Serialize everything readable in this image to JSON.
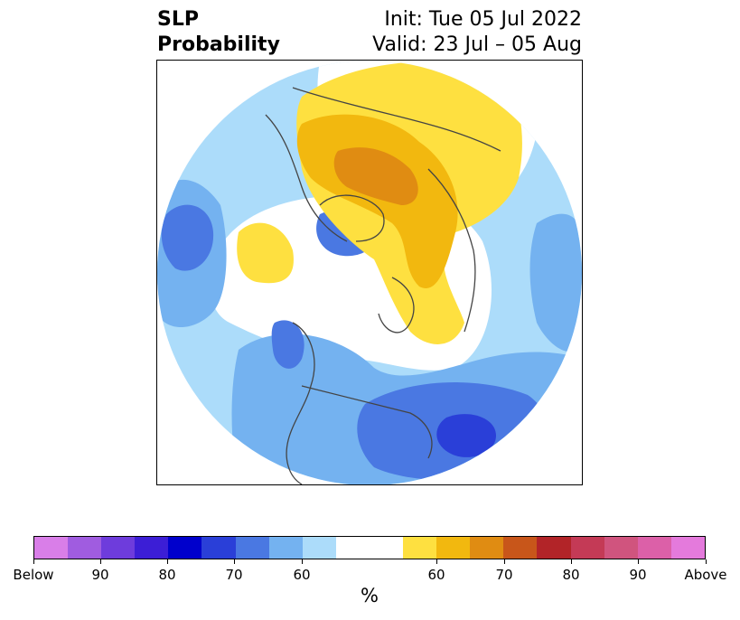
{
  "header": {
    "title_line1": "SLP",
    "title_line2": "Probability",
    "init_text": "Init: Tue 05 Jul 2022",
    "valid_text": "Valid: 23 Jul – 05 Aug"
  },
  "map": {
    "projection": "north-polar-stereographic",
    "palette": {
      "below_60": "#acdcfa",
      "below_70": "#74b2f0",
      "below_80": "#4a78e2",
      "below_90": "#2a3fd8",
      "near_normal": "#ffffff",
      "above_60": "#fee040",
      "above_70": "#f2b80f",
      "above_80": "#e08c12",
      "borders": "#444444"
    }
  },
  "colorbar": {
    "colors": [
      "#d97ee8",
      "#a05ce0",
      "#6e3cdc",
      "#3c1ed6",
      "#0000cc",
      "#2a3fd8",
      "#4a78e2",
      "#74b2f0",
      "#acdcfa",
      "#ffffff",
      "#ffffff",
      "#fee040",
      "#f2b80f",
      "#e08c12",
      "#c8561a",
      "#b22428",
      "#c43a56",
      "#d0547e",
      "#dc60a8",
      "#e47adc"
    ],
    "tick_labels": [
      "Below",
      "90",
      "80",
      "70",
      "60",
      "60",
      "70",
      "80",
      "90",
      "Above"
    ],
    "unit": "%"
  }
}
